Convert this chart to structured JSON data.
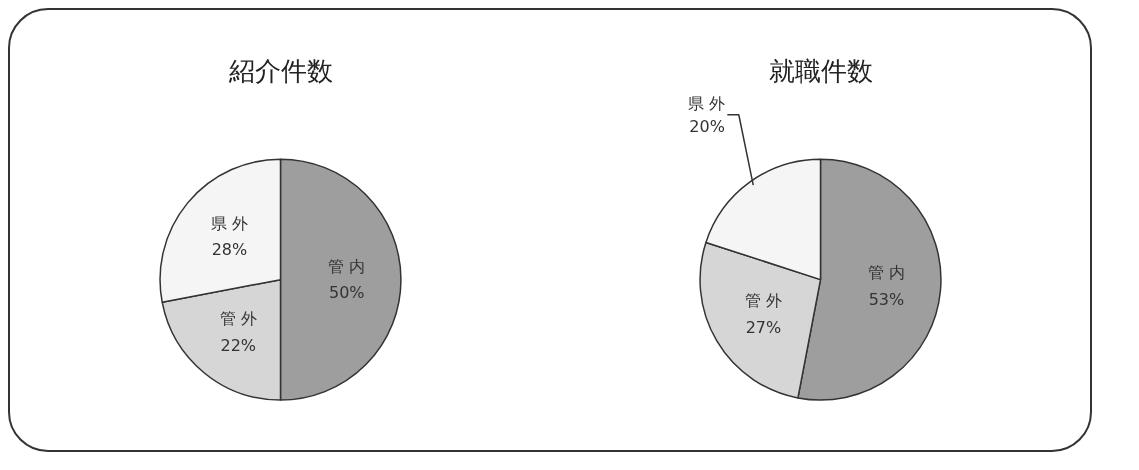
{
  "chart_data": [
    {
      "type": "pie",
      "title": "紹介件数",
      "categories": [
        "管 内",
        "管 外",
        "県 外"
      ],
      "values": [
        50,
        22,
        28
      ],
      "colors": [
        "#9e9e9e",
        "#d6d6d6",
        "#f5f5f5"
      ],
      "value_labels": [
        "50%",
        "22%",
        "28%"
      ]
    },
    {
      "type": "pie",
      "title": "就職件数",
      "categories": [
        "管 内",
        "管 外",
        "県 外"
      ],
      "values": [
        53,
        27,
        20
      ],
      "colors": [
        "#9e9e9e",
        "#d6d6d6",
        "#f5f5f5"
      ],
      "value_labels": [
        "53%",
        "27%",
        "20%"
      ]
    }
  ]
}
